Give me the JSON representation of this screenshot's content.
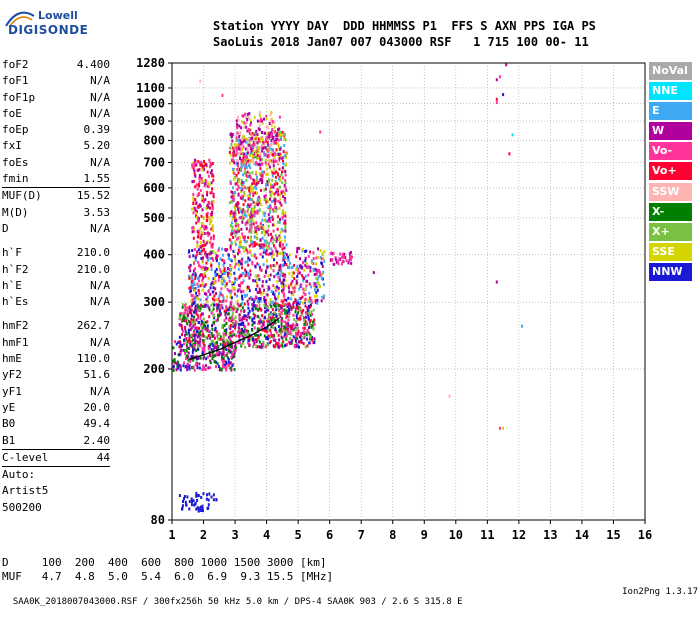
{
  "logo": {
    "maker": "Lowell",
    "brand": "DIGISONDE"
  },
  "header": {
    "line1": "Station YYYY DAY  DDD HHMMSS P1  FFS S AXN PPS IGA PS",
    "line2": "SaoLuis 2018 Jan07 007 043000 RSF   1 715 100 00- 11"
  },
  "params": {
    "group1": [
      {
        "label": "foF2",
        "value": "4.400"
      },
      {
        "label": "foF1",
        "value": "N/A"
      },
      {
        "label": "foF1p",
        "value": "N/A"
      },
      {
        "label": "foE",
        "value": "N/A"
      },
      {
        "label": "foEp",
        "value": "0.39"
      },
      {
        "label": "fxI",
        "value": "5.20"
      },
      {
        "label": "foEs",
        "value": "N/A"
      },
      {
        "label": "fmin",
        "value": "1.55"
      }
    ],
    "group2": [
      {
        "label": "MUF(D)",
        "value": "15.52"
      },
      {
        "label": "M(D)",
        "value": "3.53"
      },
      {
        "label": "D",
        "value": "N/A"
      }
    ],
    "group3": [
      {
        "label": "h`F",
        "value": "210.0"
      },
      {
        "label": "h`F2",
        "value": "210.0"
      },
      {
        "label": "h`E",
        "value": "N/A"
      },
      {
        "label": "h`Es",
        "value": "N/A"
      }
    ],
    "group4": [
      {
        "label": "hmF2",
        "value": "262.7"
      },
      {
        "label": "hmF1",
        "value": "N/A"
      },
      {
        "label": "hmE",
        "value": "110.0"
      },
      {
        "label": "yF2",
        "value": "51.6"
      },
      {
        "label": "yF1",
        "value": "N/A"
      },
      {
        "label": "yE",
        "value": "20.0"
      },
      {
        "label": "B0",
        "value": "49.4"
      },
      {
        "label": "B1",
        "value": "2.40"
      }
    ],
    "clevel": {
      "label": "C-level",
      "value": "44"
    },
    "auto": [
      "Auto:",
      "Artist5",
      "500200"
    ]
  },
  "legend": [
    {
      "label": "NoVal",
      "color": "#a9a9a9"
    },
    {
      "label": "NNE",
      "color": "#00e5ff"
    },
    {
      "label": "E",
      "color": "#3fa9f5"
    },
    {
      "label": "W",
      "color": "#b0009e"
    },
    {
      "label": "Vo-",
      "color": "#ff3399"
    },
    {
      "label": "Vo+",
      "color": "#ff0033"
    },
    {
      "label": "SSW",
      "color": "#ffb3b3"
    },
    {
      "label": "X-",
      "color": "#008000"
    },
    {
      "label": "X+",
      "color": "#7ac143"
    },
    {
      "label": "SSE",
      "color": "#d4d400"
    },
    {
      "label": "NNW",
      "color": "#1a1ad6"
    }
  ],
  "bottom": {
    "row1": "D     100  200  400  600  800 1000 1500 3000 [km]",
    "row2": "MUF   4.7  4.8  5.0  5.4  6.0  6.9  9.3 15.5 [MHz]"
  },
  "footer": {
    "left": "SAA0K_2018007043000.RSF / 300fx256h 50 kHz 5.0 km / DPS-4 SAA0K 903 / 2.6 S 315.8 E",
    "right": "Ion2Png 1.3.17"
  },
  "chart_data": {
    "type": "scatter",
    "xlim": [
      1,
      16
    ],
    "ylim": [
      80,
      1280
    ],
    "x_ticks": [
      1,
      2,
      3,
      4,
      5,
      6,
      7,
      8,
      9,
      10,
      11,
      12,
      13,
      14,
      15,
      16
    ],
    "y_ticks": [
      80,
      200,
      300,
      400,
      500,
      600,
      700,
      800,
      900,
      1000,
      1100,
      1280
    ],
    "y_scale": "log",
    "grid": true,
    "xlabel": "",
    "ylabel": "",
    "clusters": [
      {
        "x": [
          1.0,
          3.0
        ],
        "y": [
          200,
          240
        ],
        "colors": [
          "#1a1ad6",
          "#008000",
          "#ff3399",
          "#b0009e"
        ],
        "n": 260
      },
      {
        "x": [
          1.2,
          5.5
        ],
        "y": [
          230,
          300
        ],
        "colors": [
          "#ff3399",
          "#b0009e",
          "#ff0033",
          "#1a1ad6",
          "#7ac143",
          "#008000"
        ],
        "n": 900
      },
      {
        "x": [
          1.5,
          5.8
        ],
        "y": [
          300,
          420
        ],
        "colors": [
          "#ff3399",
          "#b0009e",
          "#ff0033",
          "#1a1ad6",
          "#d4d400",
          "#3fa9f5"
        ],
        "n": 700
      },
      {
        "x": [
          1.6,
          2.3
        ],
        "y": [
          420,
          720
        ],
        "colors": [
          "#ff3399",
          "#d4d400",
          "#b0009e",
          "#ff0033"
        ],
        "n": 220
      },
      {
        "x": [
          2.8,
          4.6
        ],
        "y": [
          420,
          850
        ],
        "colors": [
          "#ff3399",
          "#b0009e",
          "#d4d400",
          "#7ac143",
          "#ff0033",
          "#3fa9f5"
        ],
        "n": 800
      },
      {
        "x": [
          3.0,
          4.4
        ],
        "y": [
          700,
          960
        ],
        "colors": [
          "#ff3399",
          "#d4d400",
          "#ffb3b3",
          "#b0009e"
        ],
        "n": 180
      },
      {
        "x": [
          1.2,
          2.4
        ],
        "y": [
          85,
          95
        ],
        "colors": [
          "#1a1ad6"
        ],
        "n": 50
      },
      {
        "x": [
          6.0,
          6.7
        ],
        "y": [
          380,
          410
        ],
        "colors": [
          "#b0009e",
          "#ff3399"
        ],
        "n": 40
      }
    ],
    "points": [
      {
        "x": 11.6,
        "y": 1270,
        "c": "#b0009e"
      },
      {
        "x": 11.4,
        "y": 1180,
        "c": "#ff3399"
      },
      {
        "x": 11.3,
        "y": 1160,
        "c": "#b0009e"
      },
      {
        "x": 11.5,
        "y": 1060,
        "c": "#1a1ad6"
      },
      {
        "x": 11.3,
        "y": 1030,
        "c": "#ff0033"
      },
      {
        "x": 11.3,
        "y": 1010,
        "c": "#ff3399"
      },
      {
        "x": 11.8,
        "y": 830,
        "c": "#00e5ff"
      },
      {
        "x": 11.7,
        "y": 740,
        "c": "#ff0033"
      },
      {
        "x": 7.4,
        "y": 360,
        "c": "#b0009e"
      },
      {
        "x": 11.3,
        "y": 340,
        "c": "#b0009e"
      },
      {
        "x": 12.1,
        "y": 260,
        "c": "#3fa9f5"
      },
      {
        "x": 9.8,
        "y": 170,
        "c": "#ffb3b3"
      },
      {
        "x": 11.5,
        "y": 140,
        "c": "#d4d400"
      },
      {
        "x": 11.4,
        "y": 140,
        "c": "#ff3399"
      },
      {
        "x": 2.6,
        "y": 1055,
        "c": "#ff3399"
      },
      {
        "x": 1.9,
        "y": 1150,
        "c": "#ffb3b3"
      },
      {
        "x": 5.7,
        "y": 845,
        "c": "#ff3399"
      }
    ],
    "trace": [
      [
        1.55,
        212
      ],
      [
        2.0,
        218
      ],
      [
        2.5,
        225
      ],
      [
        3.0,
        235
      ],
      [
        3.5,
        245
      ],
      [
        4.0,
        258
      ],
      [
        4.4,
        272
      ]
    ]
  }
}
